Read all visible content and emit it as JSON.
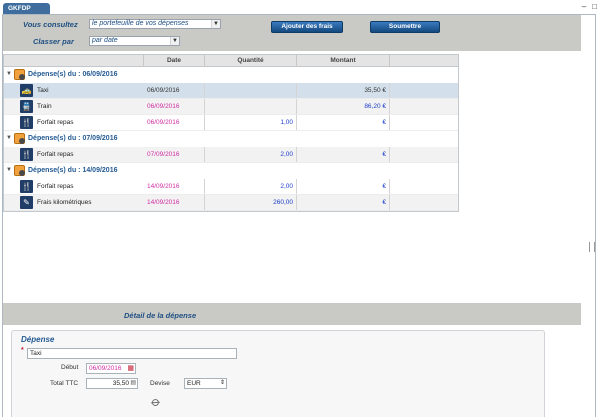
{
  "window": {
    "tab_title": "GKFDP",
    "controls": [
      "–",
      "□"
    ]
  },
  "toolbar": {
    "vous_consultez_label": "Vous consultez",
    "vous_consultez_value": "le portefeuille de vos dépenses",
    "classer_par_label": "Classer par",
    "classer_par_value": "par date",
    "add_button": "Ajouter des frais",
    "submit_button": "Soumettre"
  },
  "grid": {
    "columns": [
      "",
      "Date",
      "Quantité",
      "Montant",
      ""
    ],
    "groups": [
      {
        "label": "Dépense(s) du : 06/09/2016",
        "rows": [
          {
            "icon": "taxi-icon",
            "glyph": "🚕",
            "type": "Taxi",
            "date": "06/09/2016",
            "quantite": "",
            "montant": "35,50 €"
          },
          {
            "icon": "train-icon",
            "glyph": "🚆",
            "type": "Train",
            "date": "06/09/2016",
            "quantite": "",
            "montant": "86,20 €"
          },
          {
            "icon": "cutlery-icon",
            "glyph": "🍴",
            "type": "Forfait repas",
            "date": "06/09/2016",
            "quantite": "1,00",
            "montant": "€"
          }
        ]
      },
      {
        "label": "Dépense(s) du : 07/09/2016",
        "rows": [
          {
            "icon": "cutlery-icon",
            "glyph": "🍴",
            "type": "Forfait repas",
            "date": "07/09/2016",
            "quantite": "2,00",
            "montant": "€"
          }
        ]
      },
      {
        "label": "Dépense(s) du : 14/09/2016",
        "rows": [
          {
            "icon": "cutlery-icon",
            "glyph": "🍴",
            "type": "Forfait repas",
            "date": "14/09/2016",
            "quantite": "2,00",
            "montant": "€"
          },
          {
            "icon": "pen-icon",
            "glyph": "✎",
            "type": "Frais kilométriques",
            "date": "14/09/2016",
            "quantite": "260,00",
            "montant": "€"
          }
        ]
      }
    ]
  },
  "detail": {
    "title": "Détail de la dépense",
    "section_title": "Dépense",
    "type_value": "Taxi",
    "debut_label": "Début",
    "debut_value": "06/09/2016",
    "total_label": "Total TTC",
    "total_value": "35,50",
    "devise_label": "Devise",
    "devise_value": "EUR"
  }
}
